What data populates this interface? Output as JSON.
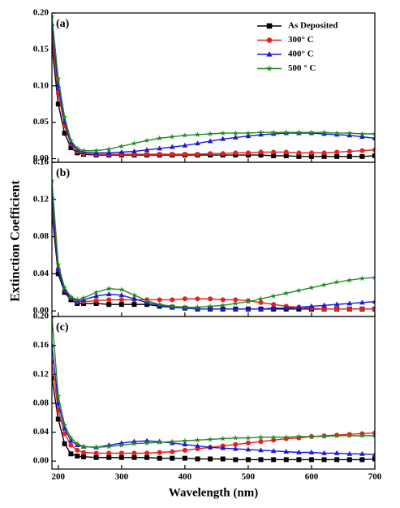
{
  "ylabel": "Extinction Coefficient",
  "xlabel": "Wavelength (nm)",
  "chart_data": [
    {
      "type": "line",
      "label": "(a)",
      "legend": "upper right",
      "x": [
        190,
        200,
        210,
        220,
        230,
        240,
        260,
        280,
        300,
        320,
        340,
        360,
        380,
        400,
        420,
        440,
        460,
        480,
        500,
        520,
        540,
        560,
        580,
        600,
        620,
        640,
        660,
        680,
        700
      ],
      "xlim": [
        190,
        700
      ],
      "ylim": [
        -0.005,
        0.2
      ],
      "yticks": [
        {
          "value": 0,
          "label": "0.00"
        },
        {
          "value": 0.05,
          "label": "0.05"
        },
        {
          "value": 0.1,
          "label": "0.10"
        },
        {
          "value": 0.15,
          "label": "0.15"
        },
        {
          "value": 0.2,
          "label": "0.20"
        }
      ],
      "series": [
        {
          "name": "As Deposited",
          "color": "#000000",
          "marker": "square",
          "values": [
            0.155,
            0.075,
            0.035,
            0.015,
            0.008,
            0.006,
            0.005,
            0.005,
            0.005,
            0.005,
            0.005,
            0.005,
            0.005,
            0.005,
            0.005,
            0.005,
            0.005,
            0.005,
            0.005,
            0.005,
            0.004,
            0.004,
            0.003,
            0.003,
            0.003,
            0.003,
            0.003,
            0.003,
            0.004
          ]
        },
        {
          "name": "300° C",
          "color": "#e8201c",
          "marker": "circle",
          "values": [
            0.172,
            0.09,
            0.045,
            0.02,
            0.01,
            0.007,
            0.006,
            0.006,
            0.006,
            0.006,
            0.006,
            0.006,
            0.006,
            0.006,
            0.006,
            0.007,
            0.007,
            0.008,
            0.008,
            0.009,
            0.009,
            0.009,
            0.008,
            0.008,
            0.008,
            0.009,
            0.01,
            0.011,
            0.012
          ]
        },
        {
          "name": "400° C",
          "color": "#1a1adb",
          "marker": "triangle",
          "values": [
            0.185,
            0.1,
            0.05,
            0.022,
            0.012,
            0.009,
            0.008,
            0.008,
            0.009,
            0.01,
            0.012,
            0.014,
            0.016,
            0.018,
            0.021,
            0.024,
            0.027,
            0.029,
            0.031,
            0.033,
            0.034,
            0.035,
            0.035,
            0.035,
            0.034,
            0.033,
            0.032,
            0.03,
            0.028
          ]
        },
        {
          "name": "500 ° C",
          "color": "#238a23",
          "marker": "star",
          "values": [
            0.195,
            0.11,
            0.057,
            0.025,
            0.014,
            0.011,
            0.011,
            0.013,
            0.017,
            0.021,
            0.025,
            0.028,
            0.03,
            0.032,
            0.033,
            0.034,
            0.035,
            0.035,
            0.035,
            0.036,
            0.036,
            0.036,
            0.036,
            0.036,
            0.036,
            0.035,
            0.035,
            0.034,
            0.034
          ]
        }
      ]
    },
    {
      "type": "line",
      "label": "(b)",
      "x": [
        190,
        200,
        210,
        220,
        230,
        240,
        260,
        280,
        300,
        320,
        340,
        360,
        380,
        400,
        420,
        440,
        460,
        480,
        500,
        520,
        540,
        560,
        580,
        600,
        620,
        640,
        660,
        680,
        700
      ],
      "xlim": [
        190,
        700
      ],
      "ylim": [
        -0.006,
        0.16
      ],
      "yticks": [
        {
          "value": 0,
          "label": "0.00"
        },
        {
          "value": 0.04,
          "label": "0.04"
        },
        {
          "value": 0.08,
          "label": "0.08"
        },
        {
          "value": 0.12,
          "label": "0.12"
        },
        {
          "value": 0.16,
          "label": "0.16"
        }
      ],
      "series": [
        {
          "color": "#000000",
          "marker": "square",
          "values": [
            0.105,
            0.04,
            0.02,
            0.012,
            0.008,
            0.008,
            0.008,
            0.007,
            0.007,
            0.007,
            0.007,
            0.005,
            0.004,
            0.003,
            0.002,
            0.002,
            0.002,
            0.002,
            0.002,
            0.002,
            0.002,
            0.002,
            0.002,
            0.002,
            0.002,
            0.002,
            0.002,
            0.002,
            0.002
          ]
        },
        {
          "color": "#e8201c",
          "marker": "circle",
          "values": [
            0.113,
            0.045,
            0.022,
            0.014,
            0.01,
            0.01,
            0.011,
            0.012,
            0.012,
            0.012,
            0.012,
            0.012,
            0.012,
            0.013,
            0.013,
            0.013,
            0.012,
            0.012,
            0.011,
            0.009,
            0.007,
            0.005,
            0.004,
            0.003,
            0.002,
            0.002,
            0.002,
            0.002,
            0.002
          ]
        },
        {
          "color": "#1a1adb",
          "marker": "triangle",
          "values": [
            0.123,
            0.045,
            0.022,
            0.014,
            0.011,
            0.012,
            0.016,
            0.018,
            0.017,
            0.013,
            0.009,
            0.006,
            0.004,
            0.003,
            0.002,
            0.002,
            0.002,
            0.002,
            0.002,
            0.002,
            0.003,
            0.003,
            0.004,
            0.005,
            0.006,
            0.007,
            0.008,
            0.009,
            0.01
          ]
        },
        {
          "color": "#238a23",
          "marker": "star",
          "values": [
            0.14,
            0.05,
            0.025,
            0.015,
            0.012,
            0.014,
            0.02,
            0.024,
            0.023,
            0.017,
            0.011,
            0.007,
            0.005,
            0.004,
            0.004,
            0.005,
            0.006,
            0.008,
            0.01,
            0.013,
            0.016,
            0.019,
            0.022,
            0.025,
            0.028,
            0.031,
            0.033,
            0.035,
            0.036
          ]
        }
      ]
    },
    {
      "type": "line",
      "label": "(c)",
      "x": [
        190,
        200,
        210,
        220,
        230,
        240,
        260,
        280,
        300,
        320,
        340,
        360,
        380,
        400,
        420,
        440,
        460,
        480,
        500,
        520,
        540,
        560,
        580,
        600,
        620,
        640,
        660,
        680,
        700
      ],
      "xlim": [
        190,
        700
      ],
      "xticks": [
        200,
        300,
        400,
        500,
        600,
        700
      ],
      "ylim": [
        -0.011,
        0.2
      ],
      "yticks": [
        {
          "value": 0,
          "label": "0.00"
        },
        {
          "value": 0.04,
          "label": "0.04"
        },
        {
          "value": 0.08,
          "label": "0.08"
        },
        {
          "value": 0.12,
          "label": "0.12"
        },
        {
          "value": 0.16,
          "label": "0.16"
        },
        {
          "value": 0.2,
          "label": "0.20"
        }
      ],
      "series": [
        {
          "color": "#000000",
          "marker": "square",
          "values": [
            0.115,
            0.058,
            0.024,
            0.01,
            0.007,
            0.006,
            0.005,
            0.005,
            0.005,
            0.005,
            0.005,
            0.004,
            0.004,
            0.004,
            0.003,
            0.003,
            0.003,
            0.002,
            0.002,
            0.002,
            0.002,
            0.002,
            0.002,
            0.002,
            0.002,
            0.002,
            0.002,
            0.002,
            0.003
          ]
        },
        {
          "color": "#e8201c",
          "marker": "circle",
          "values": [
            0.137,
            0.07,
            0.038,
            0.022,
            0.015,
            0.012,
            0.011,
            0.011,
            0.011,
            0.011,
            0.011,
            0.012,
            0.013,
            0.015,
            0.017,
            0.019,
            0.021,
            0.023,
            0.025,
            0.027,
            0.029,
            0.031,
            0.032,
            0.034,
            0.035,
            0.036,
            0.037,
            0.038,
            0.039
          ]
        },
        {
          "color": "#1a1adb",
          "marker": "triangle",
          "values": [
            0.16,
            0.08,
            0.045,
            0.028,
            0.022,
            0.02,
            0.019,
            0.022,
            0.025,
            0.027,
            0.028,
            0.027,
            0.025,
            0.023,
            0.021,
            0.019,
            0.018,
            0.017,
            0.016,
            0.015,
            0.014,
            0.013,
            0.012,
            0.012,
            0.011,
            0.011,
            0.01,
            0.01,
            0.009
          ]
        },
        {
          "color": "#238a23",
          "marker": "star",
          "values": [
            0.2,
            0.09,
            0.05,
            0.032,
            0.024,
            0.02,
            0.019,
            0.02,
            0.022,
            0.024,
            0.025,
            0.026,
            0.027,
            0.028,
            0.029,
            0.03,
            0.031,
            0.032,
            0.032,
            0.033,
            0.033,
            0.033,
            0.034,
            0.034,
            0.034,
            0.035,
            0.035,
            0.035,
            0.035
          ]
        }
      ]
    }
  ]
}
